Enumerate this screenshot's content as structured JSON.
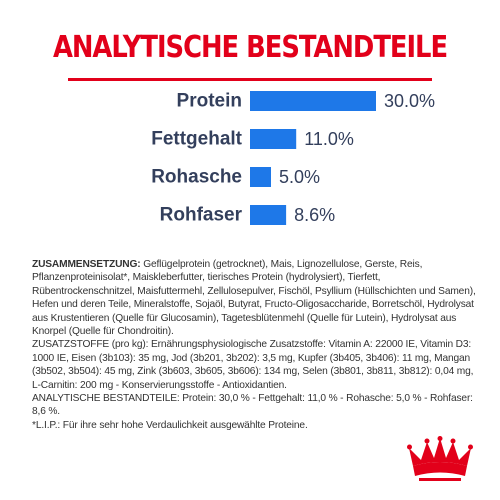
{
  "title": "ANALYTISCHE BESTANDTEILE",
  "colors": {
    "accent": "#e2001a",
    "bar": "#1e78e8",
    "text": "#333f5c"
  },
  "chart_data": {
    "type": "bar",
    "orientation": "horizontal",
    "categories": [
      "Protein",
      "Fettgehalt",
      "Rohasche",
      "Rohfaser"
    ],
    "values": [
      30.0,
      11.0,
      5.0,
      8.6
    ],
    "value_labels": [
      "30.0%",
      "11.0%",
      "5.0%",
      "8.6%"
    ],
    "unit": "%",
    "grid": false,
    "legend": "none"
  },
  "composition": {
    "heading": "ZUSAMMENSETZUNG:",
    "body": " Geflügelprotein (getrocknet), Mais, Lignozellulose, Gerste, Reis, Pflanzenproteinisolat*, Maiskleberfutter, tierisches Protein (hydrolysiert), Tierfett, Rübentrockenschnitzel, Maisfuttermehl, Zellulosepulver, Fischöl, Psyllium (Hüllschichten und Samen), Hefen und deren Teile, Mineralstoffe, Sojaöl, Butyrat, Fructo-Oligosaccharide, Borretschöl, Hydrolysat aus Krustentieren (Quelle für Glucosamin), Tagetesblütenmehl (Quelle für Lutein), Hydrolysat aus Knorpel (Quelle für Chondroitin).",
    "additives": "ZUSATZSTOFFE (pro kg): Ernährungsphysiologische Zusatzstoffe: Vitamin A: 22000 IE, Vitamin D3: 1000 IE, Eisen (3b103): 35 mg, Jod (3b201, 3b202): 3,5 mg, Kupfer (3b405, 3b406): 11 mg, Mangan (3b502, 3b504): 45 mg, Zink (3b603, 3b605, 3b606): 134 mg, Selen (3b801, 3b811, 3b812): 0,04 mg, L-Carnitin: 200 mg - Konservierungsstoffe - Antioxidantien.",
    "analysis": "ANALYTISCHE BESTANDTEILE: Protein: 30,0 % - Fettgehalt: 11,0 % - Rohasche: 5,0 % - Rohfaser: 8,6 %.",
    "footnote": "*L.I.P.: Für ihre sehr hohe Verdaulichkeit ausgewählte Proteine."
  },
  "logo": {
    "name": "crown-logo-icon"
  }
}
